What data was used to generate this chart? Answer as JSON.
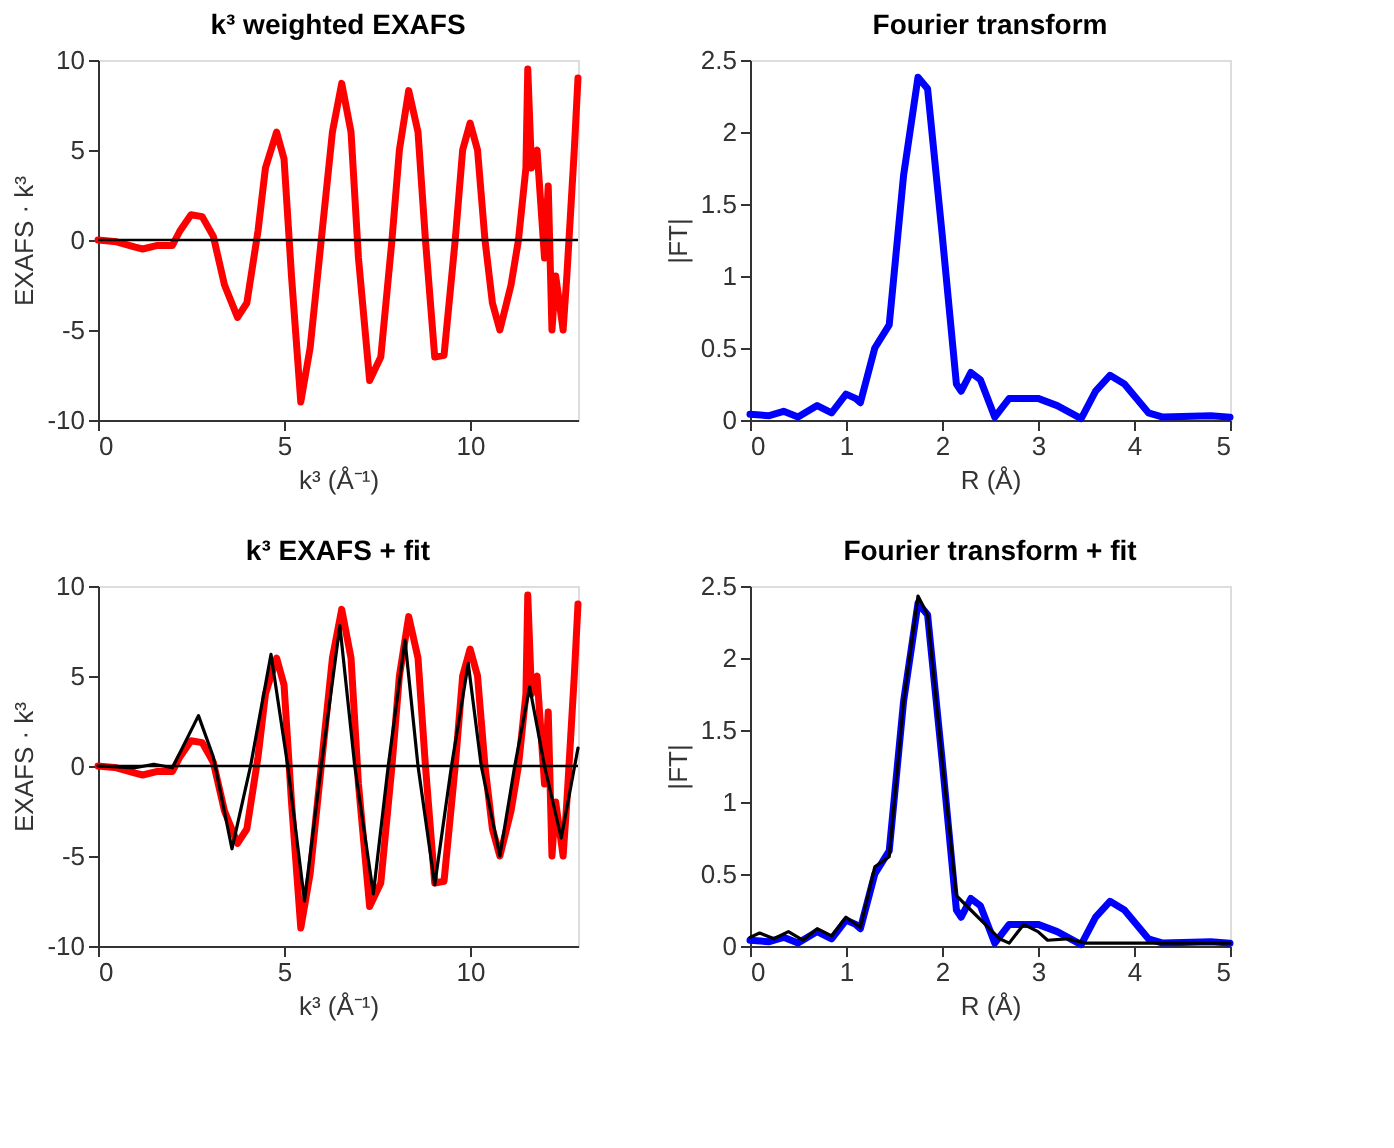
{
  "chart_data": [
    {
      "type": "line",
      "title": "k³ weighted EXAFS",
      "xlabel": "k³ (Å⁻¹)",
      "ylabel": "EXAFS · k³",
      "xlim": [
        0,
        12.9
      ],
      "xticks": [
        0,
        5,
        10
      ],
      "ylim": [
        -10,
        10
      ],
      "yticks": [
        -10,
        -5,
        0,
        5,
        10
      ],
      "grid": false,
      "legend": false,
      "ref_lines": [
        {
          "axis": "y",
          "value": 0,
          "color": "#000000"
        }
      ],
      "series": [
        {
          "color": "#ff0000",
          "x": [
            0,
            0.5,
            1.0,
            1.2,
            1.6,
            2.0,
            2.2,
            2.5,
            2.8,
            3.1,
            3.4,
            3.75,
            4.0,
            4.3,
            4.5,
            4.8,
            5.0,
            5.2,
            5.45,
            5.7,
            6.0,
            6.3,
            6.55,
            6.8,
            7.0,
            7.3,
            7.6,
            7.9,
            8.1,
            8.35,
            8.6,
            8.8,
            9.05,
            9.3,
            9.6,
            9.8,
            10.0,
            10.2,
            10.4,
            10.6,
            10.8,
            11.1,
            11.3,
            11.5,
            11.55,
            11.65,
            11.8,
            12.0,
            12.1,
            12.2,
            12.3,
            12.5,
            12.6,
            12.8,
            12.9
          ],
          "values": [
            0,
            -0.1,
            -0.4,
            -0.5,
            -0.3,
            -0.3,
            0.5,
            1.4,
            1.3,
            0.2,
            -2.5,
            -4.3,
            -3.5,
            0.5,
            4,
            6,
            4.5,
            -2,
            -9,
            -6,
            0,
            6,
            8.7,
            6,
            -1,
            -7.8,
            -6.5,
            0,
            5,
            8.3,
            6,
            0,
            -6.5,
            -6.4,
            0,
            5,
            6.5,
            5,
            0,
            -3.5,
            -5,
            -2.5,
            0,
            4,
            9.5,
            4,
            5,
            -1,
            3,
            -5,
            -2,
            -5,
            -2,
            5,
            9
          ]
        }
      ]
    },
    {
      "type": "line",
      "title": "Fourier transform",
      "xlabel": "R (Å)",
      "ylabel": "|FT|",
      "xlim": [
        0,
        5
      ],
      "xticks": [
        0,
        1,
        2,
        3,
        4,
        5
      ],
      "ylim": [
        0,
        2.5
      ],
      "yticks": [
        0,
        0.5,
        1,
        1.5,
        2,
        2.5
      ],
      "grid": false,
      "legend": false,
      "series": [
        {
          "color": "#0000ff",
          "x": [
            0,
            0.2,
            0.35,
            0.5,
            0.7,
            0.85,
            1.0,
            1.1,
            1.15,
            1.3,
            1.45,
            1.6,
            1.75,
            1.85,
            2.0,
            2.15,
            2.2,
            2.3,
            2.4,
            2.55,
            2.7,
            3.0,
            3.2,
            3.45,
            3.6,
            3.75,
            3.9,
            4.15,
            4.3,
            4.8,
            5.0
          ],
          "values": [
            0.04,
            0.03,
            0.06,
            0.02,
            0.1,
            0.05,
            0.18,
            0.15,
            0.12,
            0.5,
            0.66,
            1.7,
            2.38,
            2.3,
            1.3,
            0.25,
            0.2,
            0.33,
            0.28,
            0.02,
            0.15,
            0.15,
            0.1,
            0.01,
            0.2,
            0.31,
            0.25,
            0.05,
            0.02,
            0.03,
            0.02
          ]
        }
      ]
    },
    {
      "type": "line",
      "title": "k³ EXAFS + fit",
      "xlabel": "k³ (Å⁻¹)",
      "ylabel": "EXAFS · k³",
      "xlim": [
        0,
        12.9
      ],
      "xticks": [
        0,
        5,
        10
      ],
      "ylim": [
        -10,
        10
      ],
      "yticks": [
        -10,
        -5,
        0,
        5,
        10
      ],
      "grid": false,
      "legend": false,
      "ref_lines": [
        {
          "axis": "y",
          "value": 0,
          "color": "#000000"
        }
      ],
      "series": [
        {
          "color": "#ff0000",
          "x": [
            0,
            0.5,
            1.0,
            1.2,
            1.6,
            2.0,
            2.2,
            2.5,
            2.8,
            3.1,
            3.4,
            3.75,
            4.0,
            4.3,
            4.5,
            4.8,
            5.0,
            5.2,
            5.45,
            5.7,
            6.0,
            6.3,
            6.55,
            6.8,
            7.0,
            7.3,
            7.6,
            7.9,
            8.1,
            8.35,
            8.6,
            8.8,
            9.05,
            9.3,
            9.6,
            9.8,
            10.0,
            10.2,
            10.4,
            10.6,
            10.8,
            11.1,
            11.3,
            11.5,
            11.55,
            11.65,
            11.8,
            12.0,
            12.1,
            12.2,
            12.3,
            12.5,
            12.6,
            12.8,
            12.9
          ],
          "values": [
            0,
            -0.1,
            -0.4,
            -0.5,
            -0.3,
            -0.3,
            0.5,
            1.4,
            1.3,
            0.2,
            -2.5,
            -4.3,
            -3.5,
            0.5,
            4,
            6,
            4.5,
            -2,
            -9,
            -6,
            0,
            6,
            8.7,
            6,
            -1,
            -7.8,
            -6.5,
            0,
            5,
            8.3,
            6,
            0,
            -6.5,
            -6.4,
            0,
            5,
            6.5,
            5,
            0,
            -3.5,
            -5,
            -2.5,
            0,
            4,
            9.5,
            4,
            5,
            -1,
            3,
            -5,
            -2,
            -5,
            -2,
            5,
            9
          ]
        },
        {
          "color": "#000000",
          "x": [
            0,
            1.0,
            1.5,
            2.0,
            2.7,
            3.1,
            3.6,
            4.1,
            4.65,
            5.1,
            5.55,
            6.0,
            6.5,
            6.9,
            7.4,
            7.8,
            8.25,
            8.6,
            9.05,
            9.5,
            9.95,
            10.3,
            10.8,
            11.2,
            11.6,
            12.0,
            12.45,
            12.9
          ],
          "values": [
            0,
            -0.1,
            0.1,
            -0.1,
            2.8,
            0.5,
            -4.6,
            0,
            6.2,
            0,
            -7.5,
            0,
            7.8,
            0,
            -7.1,
            0,
            7.0,
            0,
            -6.6,
            0,
            5.7,
            0,
            -5.0,
            0,
            4.4,
            0,
            -4.0,
            1.0
          ]
        }
      ]
    },
    {
      "type": "line",
      "title": "Fourier transform + fit",
      "xlabel": "R (Å)",
      "ylabel": "|FT|",
      "xlim": [
        0,
        5
      ],
      "xticks": [
        0,
        1,
        2,
        3,
        4,
        5
      ],
      "ylim": [
        0,
        2.5
      ],
      "yticks": [
        0,
        0.5,
        1,
        1.5,
        2,
        2.5
      ],
      "grid": false,
      "legend": false,
      "series": [
        {
          "color": "#0000ff",
          "x": [
            0,
            0.2,
            0.35,
            0.5,
            0.7,
            0.85,
            1.0,
            1.1,
            1.15,
            1.3,
            1.45,
            1.6,
            1.75,
            1.85,
            2.0,
            2.15,
            2.2,
            2.3,
            2.4,
            2.55,
            2.7,
            3.0,
            3.2,
            3.45,
            3.6,
            3.75,
            3.9,
            4.15,
            4.3,
            4.8,
            5.0
          ],
          "values": [
            0.04,
            0.03,
            0.06,
            0.02,
            0.1,
            0.05,
            0.18,
            0.15,
            0.12,
            0.5,
            0.66,
            1.7,
            2.38,
            2.3,
            1.3,
            0.25,
            0.2,
            0.33,
            0.28,
            0.02,
            0.15,
            0.15,
            0.1,
            0.01,
            0.2,
            0.31,
            0.25,
            0.05,
            0.02,
            0.03,
            0.02
          ]
        },
        {
          "color": "#000000",
          "x": [
            0,
            0.1,
            0.25,
            0.4,
            0.55,
            0.7,
            0.85,
            1.0,
            1.15,
            1.3,
            1.45,
            1.6,
            1.75,
            1.85,
            2.0,
            2.15,
            2.3,
            2.45,
            2.6,
            2.7,
            2.85,
            3.0,
            3.1,
            3.3,
            3.5,
            4.0,
            5.0
          ],
          "values": [
            0.06,
            0.09,
            0.05,
            0.1,
            0.04,
            0.12,
            0.07,
            0.2,
            0.13,
            0.55,
            0.62,
            1.7,
            2.43,
            2.3,
            1.3,
            0.35,
            0.25,
            0.15,
            0.05,
            0.02,
            0.15,
            0.1,
            0.04,
            0.05,
            0.02,
            0.02,
            0.02
          ]
        }
      ]
    }
  ]
}
